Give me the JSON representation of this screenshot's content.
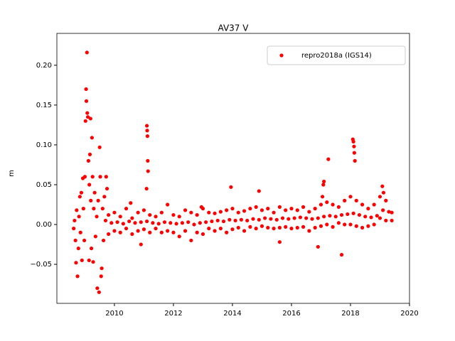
{
  "chart_data": {
    "type": "scatter",
    "title": "AV37 V",
    "y_label": "m",
    "xlim": [
      2008.05,
      2020
    ],
    "ylim": [
      -0.099,
      0.24
    ],
    "xticks": [
      2010,
      2012,
      2014,
      2016,
      2018,
      2020
    ],
    "yticks": [
      {
        "value": -0.05,
        "label": "−0.05"
      },
      {
        "value": 0,
        "label": "0.00"
      },
      {
        "value": 0.05,
        "label": "0.05"
      },
      {
        "value": 0.1,
        "label": "0.10"
      },
      {
        "value": 0.15,
        "label": "0.15"
      },
      {
        "value": 0.2,
        "label": "0.20"
      }
    ],
    "legend": "upper right",
    "grid": false,
    "series": [
      {
        "name": "repro2018a (IGS14)",
        "color": "#ff0000",
        "x": [
          2008.62,
          2008.65,
          2008.68,
          2008.7,
          2008.72,
          2008.75,
          2008.78,
          2008.8,
          2008.83,
          2008.85,
          2008.88,
          2008.9,
          2008.93,
          2008.95,
          2008.98,
          2009.0,
          2009.02,
          2009.04,
          2009.05,
          2009.07,
          2009.08,
          2009.1,
          2009.12,
          2009.14,
          2009.15,
          2009.17,
          2009.19,
          2009.2,
          2009.22,
          2009.24,
          2009.26,
          2009.28,
          2009.3,
          2009.33,
          2009.36,
          2009.4,
          2009.42,
          2009.45,
          2009.48,
          2009.5,
          2009.52,
          2009.55,
          2009.57,
          2009.6,
          2009.63,
          2009.66,
          2009.7,
          2009.75,
          2009.8,
          2009.8,
          2010.0,
          2010.0,
          2010.2,
          2010.2,
          2010.4,
          2010.4,
          2010.6,
          2010.6,
          2010.8,
          2010.8,
          2011.0,
          2011.0,
          2011.2,
          2011.2,
          2011.4,
          2011.4,
          2011.6,
          2011.6,
          2011.8,
          2011.8,
          2012.0,
          2012.0,
          2012.2,
          2012.2,
          2012.4,
          2012.4,
          2012.6,
          2012.6,
          2012.8,
          2012.8,
          2013.0,
          2013.0,
          2013.2,
          2013.2,
          2013.4,
          2013.4,
          2013.6,
          2013.6,
          2013.8,
          2013.8,
          2014.0,
          2014.0,
          2014.2,
          2014.2,
          2014.4,
          2014.4,
          2014.6,
          2014.6,
          2014.8,
          2014.8,
          2015.0,
          2015.0,
          2015.2,
          2015.2,
          2015.4,
          2015.4,
          2015.6,
          2015.6,
          2015.8,
          2015.8,
          2016.0,
          2016.0,
          2016.2,
          2016.2,
          2016.4,
          2016.4,
          2016.6,
          2016.6,
          2016.8,
          2016.8,
          2017.0,
          2017.0,
          2017.2,
          2017.2,
          2017.4,
          2017.4,
          2017.6,
          2017.6,
          2017.8,
          2017.8,
          2018.0,
          2018.0,
          2018.2,
          2018.2,
          2018.4,
          2018.4,
          2018.6,
          2018.6,
          2018.8,
          2018.8,
          2019.0,
          2019.0,
          2019.2,
          2019.2,
          2019.4,
          2019.4,
          2009.9,
          2010.1,
          2010.3,
          2010.5,
          2010.7,
          2010.9,
          2011.1,
          2011.3,
          2011.5,
          2011.7,
          2011.9,
          2012.1,
          2012.3,
          2012.5,
          2012.7,
          2012.9,
          2013.1,
          2013.3,
          2013.5,
          2013.7,
          2013.9,
          2014.1,
          2014.3,
          2014.5,
          2014.7,
          2014.9,
          2015.1,
          2015.3,
          2015.5,
          2015.7,
          2015.9,
          2016.1,
          2016.3,
          2016.5,
          2016.7,
          2016.9,
          2017.1,
          2017.3,
          2017.5,
          2017.7,
          2017.9,
          2018.1,
          2018.3,
          2018.5,
          2018.7,
          2018.9,
          2019.1,
          2019.3,
          2011.1,
          2011.11,
          2011.12,
          2011.13,
          2011.14,
          2011.09,
          2013.95,
          2014.9,
          2017.08,
          2017.1,
          2017.25,
          2018.08,
          2018.1,
          2018.12,
          2018.13,
          2018.15,
          2017.7,
          2016.9,
          2019.08,
          2019.12,
          2010.9,
          2015.6,
          2009.72,
          2010.55,
          2012.95,
          2017.05
        ],
        "values": [
          -0.005,
          0.005,
          -0.02,
          -0.048,
          0.018,
          -0.065,
          -0.03,
          0.01,
          0.035,
          -0.01,
          0.04,
          -0.045,
          0.058,
          0.02,
          -0.02,
          0.06,
          0.13,
          0.17,
          0.155,
          0.216,
          0.14,
          0.135,
          0.08,
          -0.045,
          0.05,
          0.088,
          0.133,
          0.03,
          -0.03,
          0.109,
          0.06,
          -0.047,
          0.02,
          0.04,
          -0.015,
          0.01,
          -0.08,
          0.03,
          -0.085,
          0.097,
          0.06,
          -0.065,
          -0.055,
          0.02,
          -0.02,
          0.035,
          0.005,
          0.045,
          0.012,
          -0.012,
          0.015,
          -0.008,
          0.01,
          -0.01,
          0.02,
          -0.005,
          0.008,
          -0.012,
          0.015,
          -0.008,
          0.018,
          -0.006,
          0.012,
          -0.01,
          0.01,
          -0.005,
          0.015,
          -0.01,
          0.025,
          -0.008,
          0.012,
          -0.01,
          0.01,
          -0.015,
          0.018,
          -0.008,
          0.015,
          -0.02,
          0.012,
          -0.01,
          0.02,
          -0.012,
          0.015,
          -0.005,
          0.014,
          -0.008,
          0.016,
          -0.005,
          0.018,
          -0.01,
          0.02,
          -0.006,
          0.015,
          -0.004,
          0.017,
          -0.008,
          0.02,
          -0.003,
          0.022,
          -0.005,
          0.018,
          -0.002,
          0.02,
          -0.004,
          0.015,
          -0.005,
          0.022,
          -0.004,
          0.018,
          -0.003,
          0.02,
          -0.005,
          0.018,
          -0.004,
          0.022,
          -0.003,
          0.016,
          -0.008,
          0.02,
          -0.004,
          0.025,
          -0.002,
          0.028,
          0.0,
          0.025,
          -0.003,
          0.022,
          0.002,
          0.03,
          0.0,
          0.035,
          0.0,
          0.03,
          -0.002,
          0.025,
          -0.004,
          0.02,
          -0.002,
          0.025,
          0.0,
          0.035,
          0.008,
          0.03,
          0.005,
          0.015,
          0.005,
          0.002,
          0.003,
          0.001,
          0.004,
          0.002,
          0.003,
          0.004,
          0.002,
          0.001,
          0.003,
          0.002,
          0.001,
          0.002,
          0.003,
          0.0,
          0.002,
          0.003,
          0.004,
          0.005,
          0.004,
          0.006,
          0.005,
          0.006,
          0.005,
          0.007,
          0.006,
          0.008,
          0.007,
          0.006,
          0.008,
          0.007,
          0.008,
          0.009,
          0.008,
          0.007,
          0.008,
          0.01,
          0.011,
          0.01,
          0.012,
          0.013,
          0.014,
          0.012,
          0.01,
          0.009,
          0.011,
          0.018,
          0.016,
          0.124,
          0.118,
          0.111,
          0.08,
          0.067,
          0.045,
          0.047,
          0.042,
          0.05,
          0.054,
          0.082,
          0.107,
          0.104,
          0.098,
          0.09,
          0.08,
          -0.038,
          -0.028,
          0.048,
          0.04,
          -0.025,
          -0.022,
          0.06,
          0.027,
          0.022,
          0.035
        ]
      }
    ]
  }
}
